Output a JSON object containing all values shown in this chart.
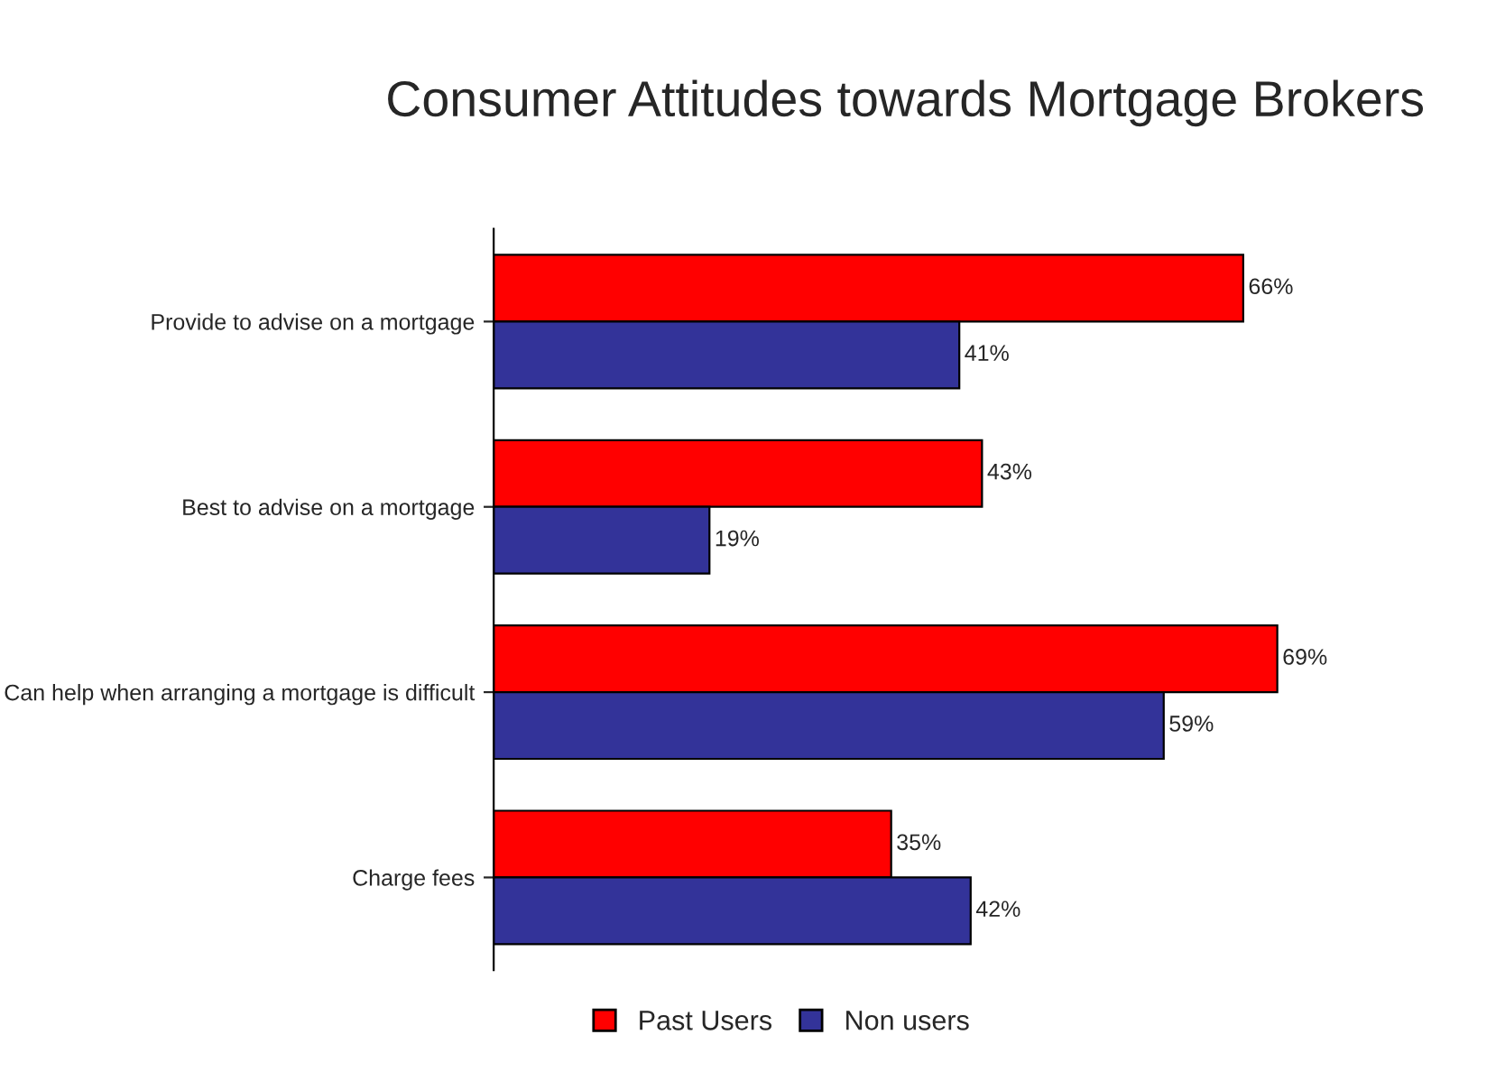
{
  "chart_data": {
    "type": "bar",
    "orientation": "horizontal",
    "title": "Consumer Attitudes towards Mortgage Brokers",
    "categories": [
      "Provide to advise on a mortgage",
      "Best to advise on a mortgage",
      "Can help when arranging a mortgage is difficult",
      "Charge fees"
    ],
    "series": [
      {
        "name": "Past Users",
        "color": "#ff0000",
        "values": [
          66,
          43,
          69,
          35
        ],
        "value_labels": [
          "66%",
          "43%",
          "69%",
          "35%"
        ]
      },
      {
        "name": "Non users",
        "color": "#333399",
        "values": [
          41,
          19,
          59,
          42
        ],
        "value_labels": [
          "41%",
          "19%",
          "59%",
          "42%"
        ]
      }
    ],
    "legend": "bottom",
    "grid": false
  }
}
